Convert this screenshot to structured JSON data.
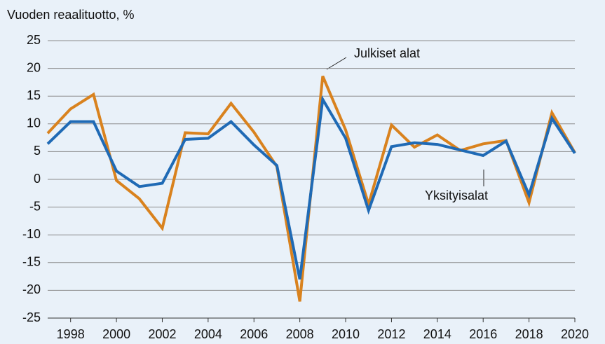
{
  "chart_data": {
    "type": "line",
    "title": "Vuoden reaalituotto, %",
    "x": [
      1997,
      1998,
      1999,
      2000,
      2001,
      2002,
      2003,
      2004,
      2005,
      2006,
      2007,
      2008,
      2009,
      2010,
      2011,
      2012,
      2013,
      2014,
      2015,
      2016,
      2017,
      2018,
      2019,
      2020
    ],
    "series": [
      {
        "name": "Julkiset alat",
        "color": "#d9821e",
        "values": [
          8.3,
          12.7,
          15.3,
          -0.2,
          -3.5,
          -8.8,
          8.4,
          8.2,
          13.7,
          8.5,
          2.3,
          -22,
          18.6,
          8.9,
          -4.5,
          9.8,
          5.8,
          8.0,
          5.2,
          6.4,
          7.0,
          -4.2,
          12.0,
          4.8
        ]
      },
      {
        "name": "Yksityisalat",
        "color": "#1f6ab5",
        "values": [
          6.4,
          10.4,
          10.4,
          1.5,
          -1.3,
          -0.7,
          7.2,
          7.4,
          10.4,
          6.2,
          2.5,
          -18,
          14.4,
          7.4,
          -5.6,
          5.9,
          6.6,
          6.3,
          5.3,
          4.3,
          6.9,
          -2.8,
          11.0,
          4.7
        ]
      }
    ],
    "xlim": [
      1997,
      2020
    ],
    "xticks": [
      1998,
      2000,
      2002,
      2004,
      2006,
      2008,
      2010,
      2012,
      2014,
      2016,
      2018,
      2020
    ],
    "ylim": [
      -25,
      25
    ],
    "yticks": [
      -25,
      -20,
      -15,
      -10,
      -5,
      0,
      5,
      10,
      15,
      20,
      25
    ],
    "grid": true
  }
}
